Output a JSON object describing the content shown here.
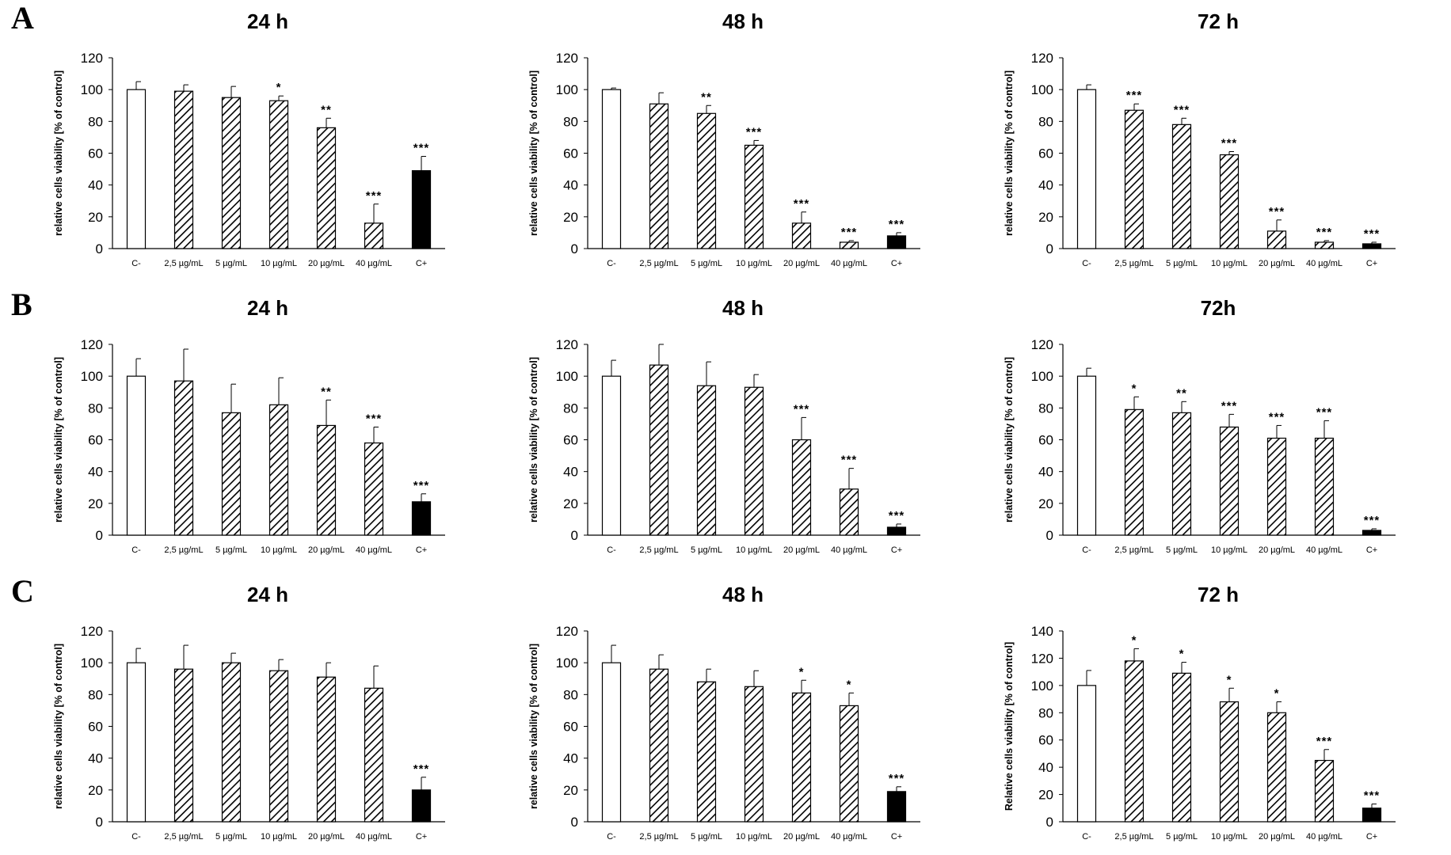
{
  "colors": {
    "control_fill": "#ffffff",
    "treatment_fill": "hatched-black-diagonal",
    "positive_fill": "#000000",
    "axis": "#000000"
  },
  "rows": [
    {
      "letter": "A",
      "panels": [
        {
          "chart_data": {
            "type": "bar",
            "title": "24 h",
            "ylabel": "relative cells viability [% of control]",
            "ylim": [
              0,
              120
            ],
            "yticks": [
              0,
              20,
              40,
              60,
              80,
              100,
              120
            ],
            "categories": [
              "C-",
              "2,5 µg/mL",
              "5 µg/mL",
              "10 µg/mL",
              "20 µg/mL",
              "40 µg/mL",
              "C+"
            ],
            "values": [
              100,
              99,
              95,
              93,
              76,
              16,
              49
            ],
            "errors": [
              5,
              4,
              7,
              3,
              6,
              12,
              9
            ],
            "significance": [
              "",
              "",
              "",
              "*",
              "**",
              "***",
              "***"
            ],
            "grid": false,
            "legend": "none"
          }
        },
        {
          "chart_data": {
            "type": "bar",
            "title": "48 h",
            "ylabel": "relative cells viability [% of control]",
            "ylim": [
              0,
              120
            ],
            "yticks": [
              0,
              20,
              40,
              60,
              80,
              100,
              120
            ],
            "categories": [
              "C-",
              "2,5 µg/mL",
              "5 µg/mL",
              "10 µg/mL",
              "20 µg/mL",
              "40 µg/mL",
              "C+"
            ],
            "values": [
              100,
              91,
              85,
              65,
              16,
              4,
              8
            ],
            "errors": [
              1,
              7,
              5,
              3,
              7,
              1,
              2
            ],
            "significance": [
              "",
              "",
              "**",
              "***",
              "***",
              "***",
              "***"
            ],
            "grid": false,
            "legend": "none"
          }
        },
        {
          "chart_data": {
            "type": "bar",
            "title": "72 h",
            "ylabel": "relative cells viability [% of control]",
            "ylim": [
              0,
              120
            ],
            "yticks": [
              0,
              20,
              40,
              60,
              80,
              100,
              120
            ],
            "categories": [
              "C-",
              "2,5 µg/mL",
              "5 µg/mL",
              "10 µg/mL",
              "20 µg/mL",
              "40 µg/mL",
              "C+"
            ],
            "values": [
              100,
              87,
              78,
              59,
              11,
              4,
              3
            ],
            "errors": [
              3,
              4,
              4,
              2,
              7,
              1,
              1
            ],
            "significance": [
              "",
              "***",
              "***",
              "***",
              "***",
              "***",
              "***"
            ],
            "grid": false,
            "legend": "none"
          }
        }
      ]
    },
    {
      "letter": "B",
      "panels": [
        {
          "chart_data": {
            "type": "bar",
            "title": "24 h",
            "ylabel": "relative cells viability [% of control]",
            "ylim": [
              0,
              120
            ],
            "yticks": [
              0,
              20,
              40,
              60,
              80,
              100,
              120
            ],
            "categories": [
              "C-",
              "2,5 µg/mL",
              "5 µg/mL",
              "10 µg/mL",
              "20 µg/mL",
              "40 µg/mL",
              "C+"
            ],
            "values": [
              100,
              97,
              77,
              82,
              69,
              58,
              21
            ],
            "errors": [
              11,
              20,
              18,
              17,
              16,
              10,
              5
            ],
            "significance": [
              "",
              "",
              "",
              "",
              "**",
              "***",
              "***"
            ],
            "grid": false,
            "legend": "none"
          }
        },
        {
          "chart_data": {
            "type": "bar",
            "title": "48 h",
            "ylabel": "relative cells viability [% of control]",
            "ylim": [
              0,
              120
            ],
            "yticks": [
              0,
              20,
              40,
              60,
              80,
              100,
              120
            ],
            "categories": [
              "C-",
              "2,5 µg/mL",
              "5 µg/mL",
              "10 µg/mL",
              "20 µg/mL",
              "40 µg/mL",
              "C+"
            ],
            "values": [
              100,
              107,
              94,
              93,
              60,
              29,
              5
            ],
            "errors": [
              10,
              13,
              15,
              8,
              14,
              13,
              2
            ],
            "significance": [
              "",
              "",
              "",
              "",
              "***",
              "***",
              "***"
            ],
            "grid": false,
            "legend": "none"
          }
        },
        {
          "chart_data": {
            "type": "bar",
            "title": "72h",
            "ylabel": "relative cells viability [% of control]",
            "ylim": [
              0,
              120
            ],
            "yticks": [
              0,
              20,
              40,
              60,
              80,
              100,
              120
            ],
            "categories": [
              "C-",
              "2,5 µg/mL",
              "5 µg/mL",
              "10 µg/mL",
              "20 µg/mL",
              "40 µg/mL",
              "C+"
            ],
            "values": [
              100,
              79,
              77,
              68,
              61,
              61,
              3
            ],
            "errors": [
              5,
              8,
              7,
              8,
              8,
              11,
              1
            ],
            "significance": [
              "",
              "*",
              "**",
              "***",
              "***",
              "***",
              "***"
            ],
            "grid": false,
            "legend": "none"
          }
        }
      ]
    },
    {
      "letter": "C",
      "panels": [
        {
          "chart_data": {
            "type": "bar",
            "title": "24 h",
            "ylabel": "relative cells viability [% of control]",
            "ylim": [
              0,
              120
            ],
            "yticks": [
              0,
              20,
              40,
              60,
              80,
              100,
              120
            ],
            "categories": [
              "C-",
              "2,5 µg/mL",
              "5 µg/mL",
              "10 µg/mL",
              "20 µg/mL",
              "40 µg/mL",
              "C+"
            ],
            "values": [
              100,
              96,
              100,
              95,
              91,
              84,
              20
            ],
            "errors": [
              9,
              15,
              6,
              7,
              9,
              14,
              8
            ],
            "significance": [
              "",
              "",
              "",
              "",
              "",
              "",
              "***"
            ],
            "grid": false,
            "legend": "none"
          }
        },
        {
          "chart_data": {
            "type": "bar",
            "title": "48 h",
            "ylabel": "relative cells viability [% of control]",
            "ylim": [
              0,
              120
            ],
            "yticks": [
              0,
              20,
              40,
              60,
              80,
              100,
              120
            ],
            "categories": [
              "C-",
              "2,5 µg/mL",
              "5 µg/mL",
              "10 µg/mL",
              "20 µg/mL",
              "40 µg/mL",
              "C+"
            ],
            "values": [
              100,
              96,
              88,
              85,
              81,
              73,
              19
            ],
            "errors": [
              11,
              9,
              8,
              10,
              8,
              8,
              3
            ],
            "significance": [
              "",
              "",
              "",
              "",
              "*",
              "*",
              "***"
            ],
            "grid": false,
            "legend": "none"
          }
        },
        {
          "chart_data": {
            "type": "bar",
            "title": "72 h",
            "ylabel": "Relative cells viability [% of control]",
            "ylim": [
              0,
              140
            ],
            "yticks": [
              0,
              20,
              40,
              60,
              80,
              100,
              120,
              140
            ],
            "categories": [
              "C-",
              "2,5 µg/mL",
              "5 µg/mL",
              "10 µg/mL",
              "20 µg/mL",
              "40 µg/mL",
              "C+"
            ],
            "values": [
              100,
              118,
              109,
              88,
              80,
              45,
              10
            ],
            "errors": [
              11,
              9,
              8,
              10,
              8,
              8,
              3
            ],
            "significance": [
              "",
              "*",
              "*",
              "*",
              "*",
              "***",
              "***"
            ],
            "grid": false,
            "legend": "none"
          }
        }
      ]
    }
  ]
}
